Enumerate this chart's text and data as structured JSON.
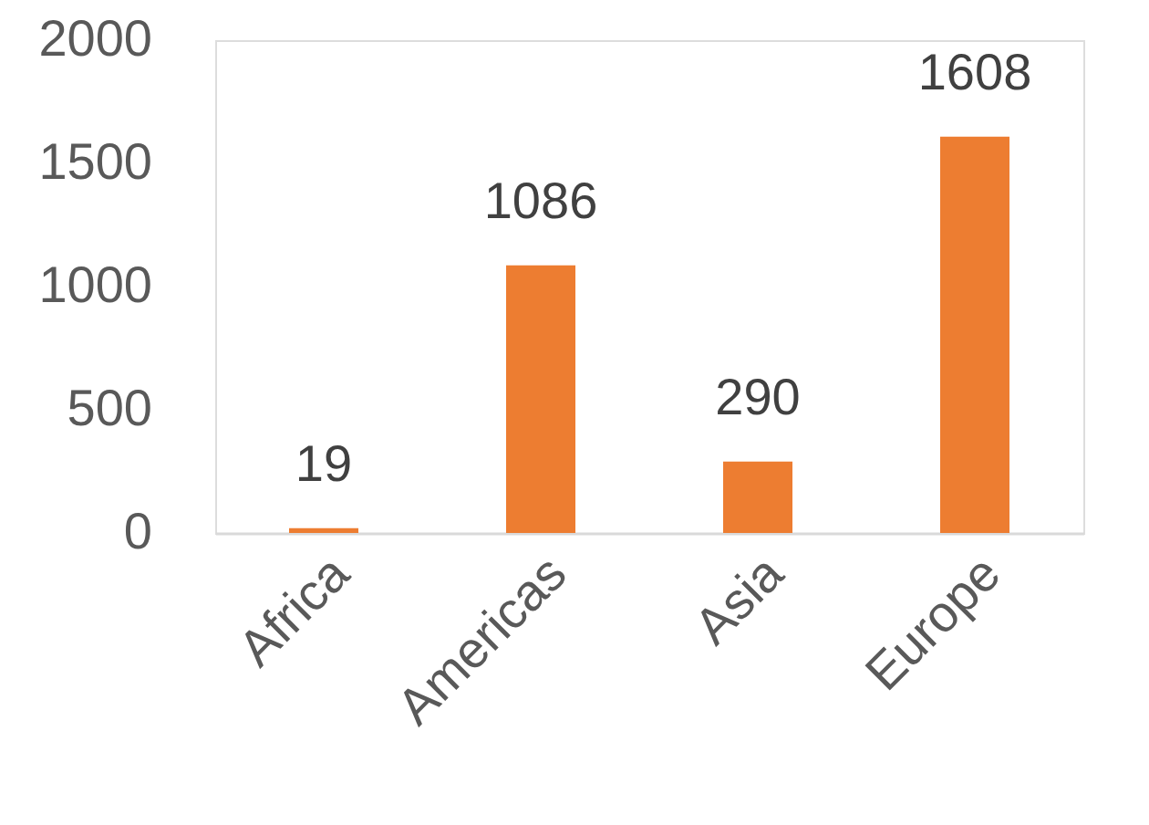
{
  "chart_data": {
    "type": "bar",
    "categories": [
      "Africa",
      "Americas",
      "Asia",
      "Europe"
    ],
    "values": [
      19,
      1086,
      290,
      1608
    ],
    "color": "#ed7d31",
    "ylim": [
      0,
      2000
    ],
    "yticks": [
      0,
      500,
      1000,
      1500,
      2000
    ],
    "data_labels": true
  }
}
